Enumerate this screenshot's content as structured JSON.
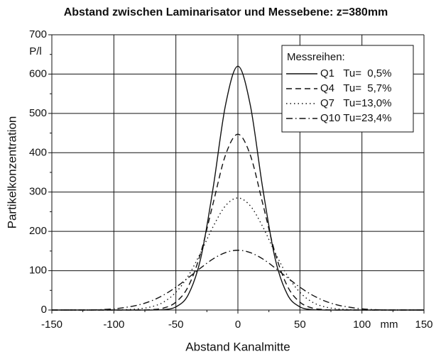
{
  "chart_data": {
    "type": "line",
    "title": "Abstand zwischen Laminarisator und Messebene: z=380mm",
    "xlabel": "Abstand Kanalmitte",
    "ylabel": "Partikelkonzentration",
    "xunit": "mm",
    "yunit": "P/l",
    "legend_title": "Messreihen:",
    "legend": "upper right",
    "grid": true,
    "xlim": [
      -150,
      150
    ],
    "ylim": [
      0,
      700
    ],
    "xticks": [
      -150,
      -100,
      -50,
      0,
      50,
      100,
      150
    ],
    "yticks": [
      0,
      100,
      200,
      300,
      400,
      500,
      600,
      700
    ],
    "xminorticks": [
      -125,
      -75,
      -25,
      25,
      75,
      125
    ],
    "yminorticks": [
      50,
      150,
      250,
      350,
      450,
      550,
      650
    ],
    "x": [
      -150,
      -140,
      -130,
      -120,
      -110,
      -100,
      -90,
      -80,
      -70,
      -60,
      -50,
      -40,
      -30,
      -20,
      -10,
      0,
      10,
      20,
      30,
      40,
      50,
      60,
      70,
      80,
      90,
      100,
      110,
      120,
      130,
      140,
      150
    ],
    "series": [
      {
        "name": "Q1   Tu=  0,5%",
        "color": "#111111",
        "linestyle": "solid",
        "values": [
          0,
          0,
          0,
          0,
          0,
          0,
          0,
          0,
          0,
          1,
          8,
          39,
          131,
          310,
          521,
          620,
          521,
          310,
          131,
          39,
          8,
          1,
          0,
          0,
          0,
          0,
          0,
          0,
          0,
          0,
          0
        ]
      },
      {
        "name": "Q4   Tu=  5,7%",
        "color": "#111111",
        "linestyle": "dashed",
        "values": [
          0,
          0,
          0,
          0,
          0,
          0,
          0,
          0,
          1,
          5,
          20,
          60,
          145,
          271,
          394,
          447,
          394,
          271,
          145,
          60,
          20,
          5,
          1,
          0,
          0,
          0,
          0,
          0,
          0,
          0,
          0
        ]
      },
      {
        "name": "Q7   Tu=13,0%",
        "color": "#111111",
        "linestyle": "dotted",
        "values": [
          0,
          0,
          0,
          0,
          0,
          0,
          1,
          3,
          8,
          20,
          45,
          87,
          146,
          212,
          265,
          285,
          265,
          212,
          146,
          87,
          45,
          20,
          8,
          3,
          1,
          0,
          0,
          0,
          0,
          0,
          0
        ]
      },
      {
        "name": "Q10 Tu=23,4%",
        "color": "#111111",
        "linestyle": "dashdot",
        "values": [
          0,
          0,
          0,
          0,
          1,
          3,
          7,
          13,
          23,
          38,
          58,
          82,
          107,
          130,
          146,
          152,
          146,
          130,
          107,
          82,
          58,
          38,
          23,
          13,
          7,
          3,
          1,
          0,
          0,
          0,
          0
        ]
      }
    ]
  }
}
